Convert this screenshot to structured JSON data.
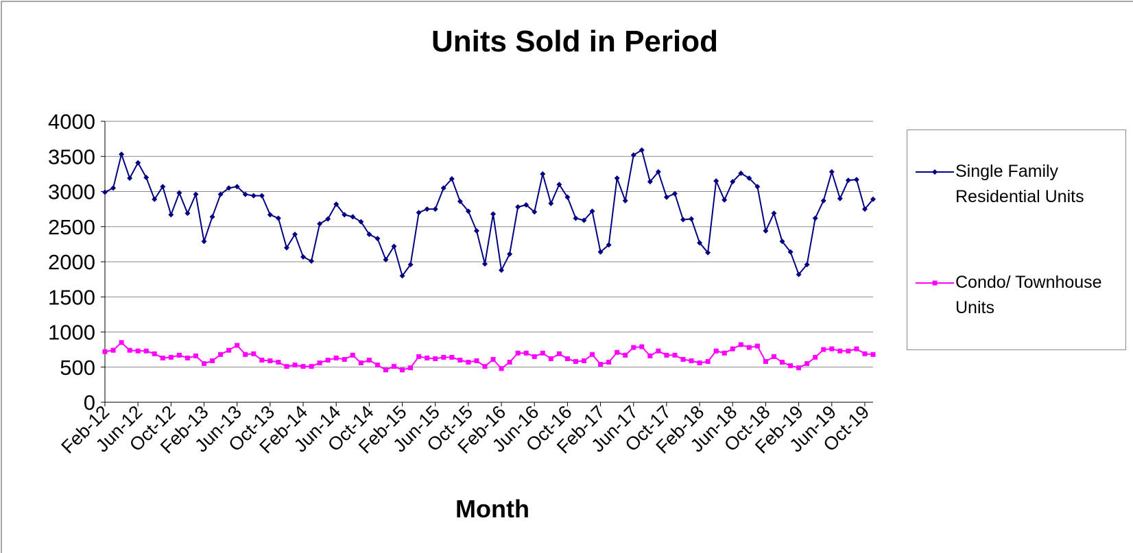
{
  "chart_data": {
    "type": "line",
    "title": "Units Sold in Period",
    "x_label": "Month",
    "categories": [
      "Feb-12",
      null,
      null,
      null,
      "Jun-12",
      null,
      null,
      null,
      "Oct-12",
      null,
      null,
      null,
      "Feb-13",
      null,
      null,
      null,
      "Jun-13",
      null,
      null,
      null,
      "Oct-13",
      null,
      null,
      null,
      "Feb-14",
      null,
      null,
      null,
      "Jun-14",
      null,
      null,
      null,
      "Oct-14",
      null,
      null,
      null,
      "Feb-15",
      null,
      null,
      null,
      "Jun-15",
      null,
      null,
      null,
      "Oct-15",
      null,
      null,
      null,
      "Feb-16",
      null,
      null,
      null,
      "Jun-16",
      null,
      null,
      null,
      "Oct-16",
      null,
      null,
      null,
      "Feb-17",
      null,
      null,
      null,
      "Jun-17",
      null,
      null,
      null,
      "Oct-17",
      null,
      null,
      null,
      "Feb-18",
      null,
      null,
      null,
      "Jun-18",
      null,
      null,
      null,
      "Oct-18",
      null,
      null,
      null,
      "Feb-19",
      null,
      null,
      null,
      "Jun-19",
      null,
      null,
      null,
      "Oct-19",
      null
    ],
    "series": [
      {
        "name": "Single Family Residential Units",
        "color": "#000080",
        "marker": "diamond",
        "values": [
          2990,
          3050,
          3530,
          3190,
          3410,
          3200,
          2890,
          3070,
          2670,
          2980,
          2690,
          2960,
          2290,
          2640,
          2960,
          3050,
          3070,
          2960,
          2940,
          2940,
          2670,
          2620,
          2200,
          2390,
          2070,
          2010,
          2540,
          2610,
          2820,
          2670,
          2640,
          2570,
          2390,
          2330,
          2030,
          2220,
          1800,
          1960,
          2700,
          2750,
          2750,
          3050,
          3180,
          2860,
          2720,
          2440,
          1970,
          2680,
          1880,
          2110,
          2780,
          2810,
          2710,
          3250,
          2830,
          3100,
          2920,
          2620,
          2590,
          2720,
          2140,
          2240,
          3190,
          2870,
          3520,
          3590,
          3140,
          3280,
          2920,
          2970,
          2600,
          2610,
          2270,
          2130,
          3150,
          2880,
          3140,
          3260,
          3190,
          3070,
          2440,
          2690,
          2290,
          2140,
          1820,
          1960,
          2620,
          2870,
          3280,
          2900,
          3160,
          3170,
          2750,
          2890
        ]
      },
      {
        "name": "Condo/ Townhouse Units",
        "color": "#ff00ff",
        "marker": "square",
        "values": [
          720,
          740,
          850,
          740,
          730,
          730,
          690,
          630,
          640,
          670,
          630,
          660,
          550,
          590,
          680,
          740,
          810,
          680,
          690,
          600,
          590,
          570,
          510,
          530,
          510,
          510,
          560,
          600,
          630,
          610,
          670,
          560,
          600,
          530,
          460,
          510,
          460,
          490,
          650,
          630,
          620,
          640,
          640,
          600,
          570,
          590,
          510,
          610,
          480,
          570,
          700,
          700,
          650,
          700,
          620,
          690,
          620,
          580,
          590,
          680,
          540,
          570,
          710,
          670,
          780,
          790,
          660,
          730,
          670,
          670,
          610,
          590,
          560,
          580,
          730,
          700,
          760,
          820,
          780,
          800,
          580,
          650,
          570,
          520,
          490,
          550,
          640,
          750,
          760,
          730,
          730,
          760,
          690,
          680
        ]
      }
    ],
    "ylim": [
      0,
      4000
    ],
    "yticks": [
      0,
      500,
      1000,
      1500,
      2000,
      2500,
      3000,
      3500,
      4000
    ],
    "grid": true,
    "legend": "right"
  }
}
